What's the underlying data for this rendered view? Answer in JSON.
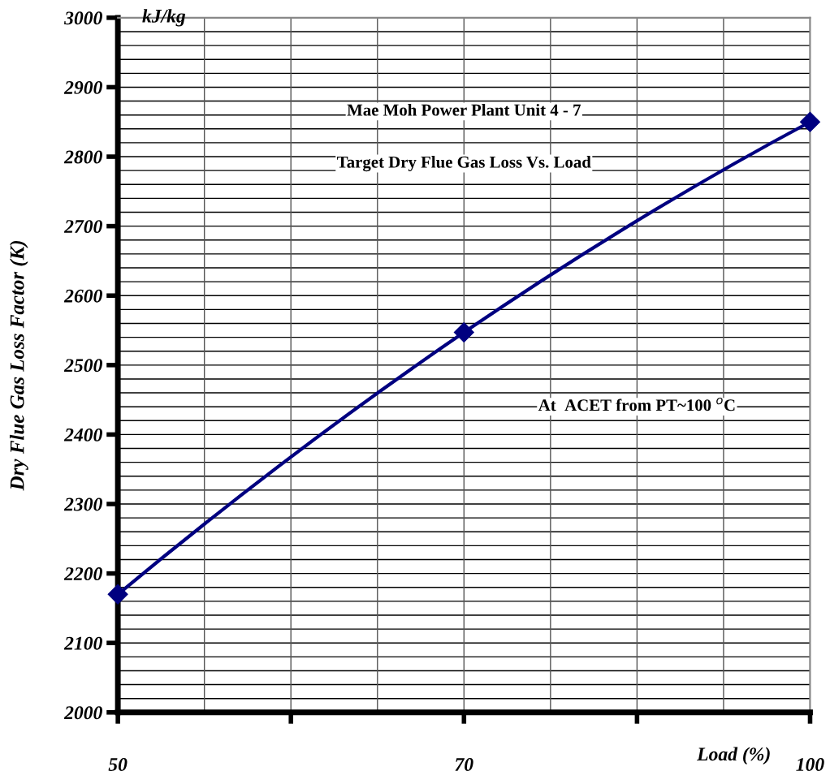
{
  "chart_data": {
    "type": "line",
    "title": "Mae Moh Power Plant Unit 4 - 7",
    "subtitle": "Target Dry Flue Gas Loss Vs. Load",
    "xlabel": "Load (%)",
    "ylabel": "Dry Flue Gas Loss Factor (K)",
    "annotations": [
      "kJ/kg",
      "At  ACET from PT~100 $^{o}$C"
    ],
    "categories": [
      "50",
      "70",
      "100"
    ],
    "series": [
      {
        "color": "#000080",
        "values": [
          2170,
          2547,
          2850
        ]
      }
    ],
    "ylim": [
      2000,
      3000
    ],
    "yticks": [
      2000,
      2100,
      2200,
      2300,
      2400,
      2500,
      2600,
      2700,
      2800,
      2900,
      3000
    ],
    "grid": true,
    "marker": "diamond",
    "line_style": "solid"
  }
}
